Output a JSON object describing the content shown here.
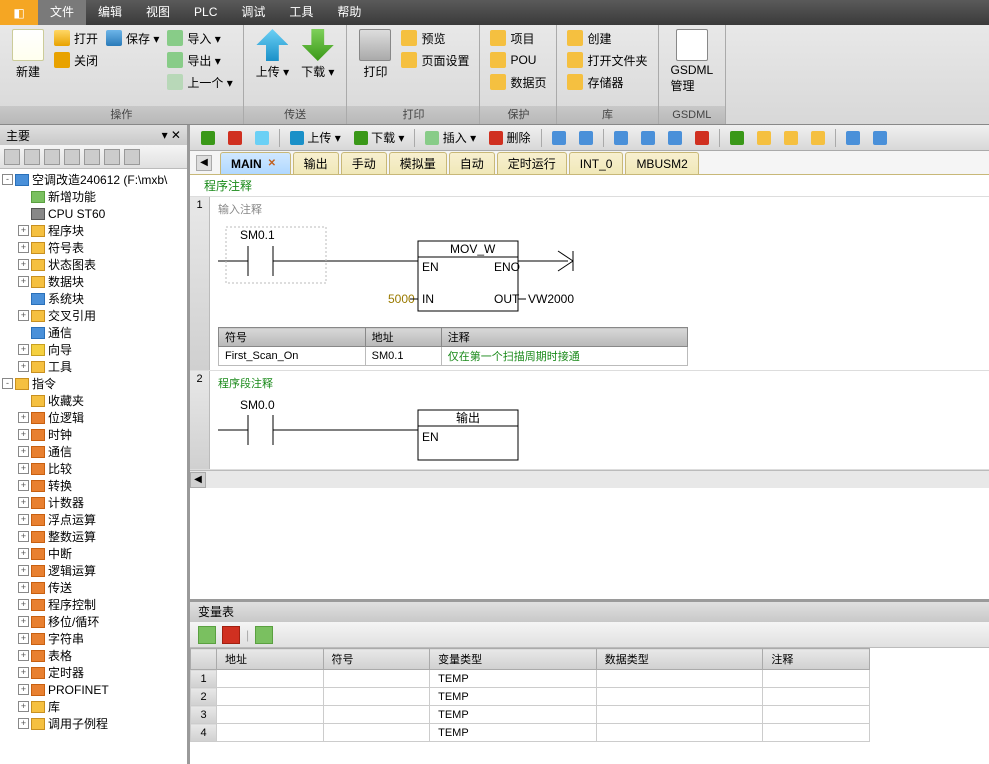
{
  "menu": {
    "items": [
      "文件",
      "编辑",
      "视图",
      "PLC",
      "调试",
      "工具",
      "帮助"
    ],
    "active": 0
  },
  "ribbon": {
    "groups": [
      {
        "label": "操作",
        "big": [
          {
            "icon": "i-new",
            "label": "新建"
          }
        ],
        "cols": [
          [
            {
              "icon": "i-open",
              "label": "打开"
            },
            {
              "icon": "i-close",
              "label": "关闭"
            }
          ],
          [
            {
              "icon": "i-save",
              "label": "保存",
              "drop": true
            }
          ],
          [
            {
              "icon": "i-import",
              "label": "导入",
              "drop": true
            },
            {
              "icon": "i-export",
              "label": "导出",
              "drop": true
            },
            {
              "icon": "i-prev",
              "label": "上一个",
              "drop": true
            }
          ]
        ]
      },
      {
        "label": "传送",
        "big": [
          {
            "icon": "i-up",
            "label": "上传",
            "drop": true
          },
          {
            "icon": "i-down",
            "label": "下载",
            "drop": true
          }
        ]
      },
      {
        "label": "打印",
        "big": [
          {
            "icon": "i-print",
            "label": "打印"
          }
        ],
        "cols": [
          [
            {
              "icon": "i-key",
              "label": "预览"
            },
            {
              "icon": "i-key",
              "label": "页面设置"
            }
          ]
        ]
      },
      {
        "label": "保护",
        "cols": [
          [
            {
              "icon": "i-key",
              "label": "项目"
            },
            {
              "icon": "i-key",
              "label": "POU"
            },
            {
              "icon": "i-key",
              "label": "数据页"
            }
          ]
        ]
      },
      {
        "label": "库",
        "cols": [
          [
            {
              "icon": "i-lib",
              "label": "创建"
            },
            {
              "icon": "i-lib",
              "label": "打开文件夹"
            },
            {
              "icon": "i-lib",
              "label": "存储器"
            }
          ]
        ]
      },
      {
        "label": "GSDML",
        "big": [
          {
            "icon": "i-xml",
            "label": "GSDML\n管理"
          }
        ]
      }
    ]
  },
  "leftPanel": {
    "title": "主要",
    "project": "空调改造240612  (F:\\mxb\\"
  },
  "tree1": [
    {
      "ind": 1,
      "exp": "",
      "ico": "ni-green",
      "label": "新增功能"
    },
    {
      "ind": 1,
      "exp": "",
      "ico": "ni-chip",
      "label": "CPU ST60"
    },
    {
      "ind": 1,
      "exp": "+",
      "ico": "ni-folder",
      "label": "程序块"
    },
    {
      "ind": 1,
      "exp": "+",
      "ico": "ni-folder",
      "label": "符号表"
    },
    {
      "ind": 1,
      "exp": "+",
      "ico": "ni-folder",
      "label": "状态图表"
    },
    {
      "ind": 1,
      "exp": "+",
      "ico": "ni-folder",
      "label": "数据块"
    },
    {
      "ind": 1,
      "exp": "",
      "ico": "ni-blue",
      "label": "系统块"
    },
    {
      "ind": 1,
      "exp": "+",
      "ico": "ni-folder",
      "label": "交叉引用"
    },
    {
      "ind": 1,
      "exp": "",
      "ico": "ni-blue",
      "label": "通信"
    },
    {
      "ind": 1,
      "exp": "+",
      "ico": "ni-yellow",
      "label": "向导"
    },
    {
      "ind": 1,
      "exp": "+",
      "ico": "ni-folder",
      "label": "工具"
    }
  ],
  "tree2Label": "指令",
  "tree2": [
    {
      "exp": "",
      "ico": "ni-folder",
      "label": "收藏夹"
    },
    {
      "exp": "+",
      "ico": "ni-table",
      "label": "位逻辑"
    },
    {
      "exp": "+",
      "ico": "ni-table",
      "label": "时钟"
    },
    {
      "exp": "+",
      "ico": "ni-table",
      "label": "通信"
    },
    {
      "exp": "+",
      "ico": "ni-table",
      "label": "比较"
    },
    {
      "exp": "+",
      "ico": "ni-table",
      "label": "转换"
    },
    {
      "exp": "+",
      "ico": "ni-table",
      "label": "计数器"
    },
    {
      "exp": "+",
      "ico": "ni-table",
      "label": "浮点运算"
    },
    {
      "exp": "+",
      "ico": "ni-table",
      "label": "整数运算"
    },
    {
      "exp": "+",
      "ico": "ni-table",
      "label": "中断"
    },
    {
      "exp": "+",
      "ico": "ni-table",
      "label": "逻辑运算"
    },
    {
      "exp": "+",
      "ico": "ni-table",
      "label": "传送"
    },
    {
      "exp": "+",
      "ico": "ni-table",
      "label": "程序控制"
    },
    {
      "exp": "+",
      "ico": "ni-table",
      "label": "移位/循环"
    },
    {
      "exp": "+",
      "ico": "ni-table",
      "label": "字符串"
    },
    {
      "exp": "+",
      "ico": "ni-table",
      "label": "表格"
    },
    {
      "exp": "+",
      "ico": "ni-table",
      "label": "定时器"
    },
    {
      "exp": "+",
      "ico": "ni-table",
      "label": "PROFINET"
    },
    {
      "exp": "+",
      "ico": "ni-folder",
      "label": "库"
    },
    {
      "exp": "+",
      "ico": "ni-folder",
      "label": "调用子例程"
    }
  ],
  "editorToolbar": {
    "upload": "上传",
    "download": "下载",
    "insert": "插入",
    "delete": "删除"
  },
  "tabs": [
    {
      "label": "MAIN",
      "active": true,
      "close": true
    },
    {
      "label": "输出"
    },
    {
      "label": "手动"
    },
    {
      "label": "模拟量"
    },
    {
      "label": "自动"
    },
    {
      "label": "定时运行"
    },
    {
      "label": "INT_0"
    },
    {
      "label": "MBUSM2"
    }
  ],
  "ladder": {
    "header": "程序注释",
    "rung1": {
      "num": "1",
      "comment": "输入注释",
      "contact": "SM0.1",
      "block": {
        "title": "MOV_W",
        "en": "EN",
        "eno": "ENO",
        "in": "IN",
        "out": "OUT",
        "inval": "5000",
        "outval": "VW2000"
      },
      "symhdr": [
        "符号",
        "地址",
        "注释"
      ],
      "symrow": [
        "First_Scan_On",
        "SM0.1",
        "仅在第一个扫描周期时接通"
      ]
    },
    "rung2": {
      "num": "2",
      "comment": "程序段注释",
      "contact": "SM0.0",
      "block": {
        "title": "输出",
        "en": "EN"
      }
    }
  },
  "varPanel": {
    "title": "变量表",
    "headers": [
      "",
      "地址",
      "符号",
      "变量类型",
      "数据类型",
      "注释"
    ],
    "rows": [
      {
        "n": "1",
        "type": "TEMP"
      },
      {
        "n": "2",
        "type": "TEMP"
      },
      {
        "n": "3",
        "type": "TEMP"
      },
      {
        "n": "4",
        "type": "TEMP"
      }
    ]
  }
}
